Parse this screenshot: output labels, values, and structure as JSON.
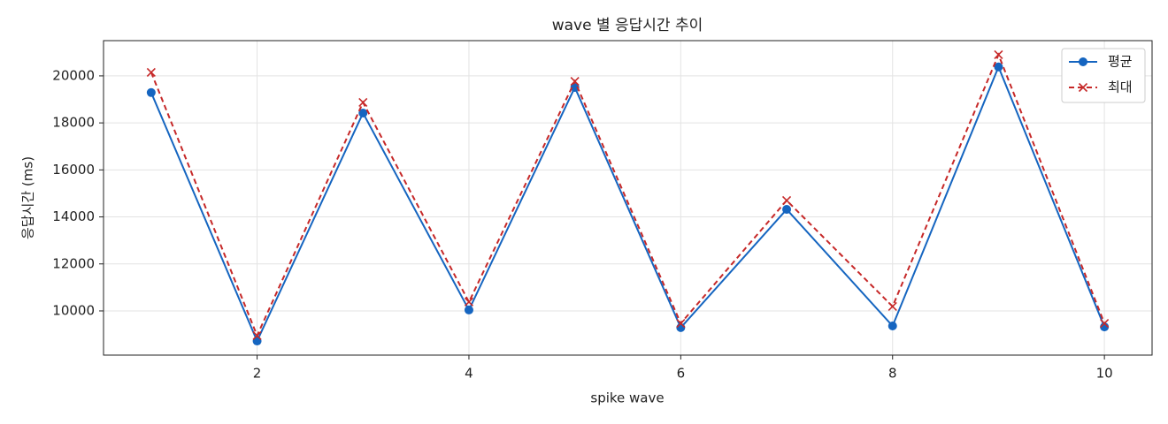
{
  "chart_data": {
    "type": "line",
    "title": "wave 별 응답시간 추이",
    "x_label": "spike wave",
    "y_label": "응답시간 (ms)",
    "x": [
      1,
      2,
      3,
      4,
      5,
      6,
      7,
      8,
      9,
      10
    ],
    "series": [
      {
        "name": "평균",
        "color": "#1565c0",
        "marker": "o",
        "linestyle": "-",
        "values": [
          19290,
          8720,
          18420,
          10040,
          19510,
          9290,
          14320,
          9360,
          20380,
          9320
        ]
      },
      {
        "name": "최대",
        "color": "#c62828",
        "marker": "x",
        "linestyle": "--",
        "values": [
          20150,
          8950,
          18870,
          10380,
          19770,
          9470,
          14700,
          10190,
          20900,
          9470
        ]
      }
    ],
    "xlim": [
      0.55,
      10.45
    ],
    "ylim": [
      8120,
      21500
    ],
    "xticks": [
      2,
      4,
      6,
      8,
      10
    ],
    "yticks": [
      10000,
      12000,
      14000,
      16000,
      18000,
      20000
    ],
    "grid": true,
    "legend": "upper right"
  }
}
